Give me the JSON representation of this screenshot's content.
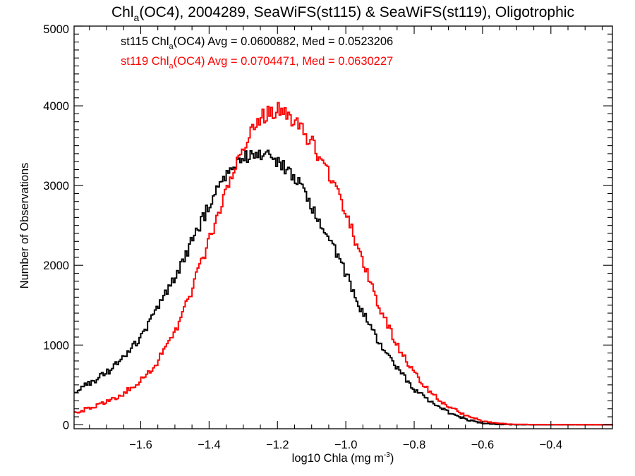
{
  "chart_data": {
    "type": "line",
    "style": "step-histogram",
    "title": {
      "prefix": "Chl",
      "subscript": "a",
      "suffix": "(OC4), 2004289, SeaWiFS(st115) & SeaWiFS(st119), Oligotrophic"
    },
    "xlabel": {
      "text": "log10 Chla (mg m",
      "superscript": "-3",
      "suffix": ")"
    },
    "ylabel": "Number of Observations",
    "xlim": [
      -1.795,
      -0.22
    ],
    "ylim": [
      -50,
      5000
    ],
    "x_ticks": [
      {
        "value": -1.6,
        "label": "−1.6"
      },
      {
        "value": -1.4,
        "label": "−1.4"
      },
      {
        "value": -1.2,
        "label": "−1.2"
      },
      {
        "value": -1.0,
        "label": "−1.0"
      },
      {
        "value": -0.8,
        "label": "−0.8"
      },
      {
        "value": -0.6,
        "label": "−0.6"
      },
      {
        "value": -0.4,
        "label": "−0.4"
      }
    ],
    "x_minor_step": 0.05,
    "y_ticks": [
      {
        "value": 0,
        "label": "0"
      },
      {
        "value": 1000,
        "label": "1000"
      },
      {
        "value": 2000,
        "label": "2000"
      },
      {
        "value": 3000,
        "label": "3000"
      },
      {
        "value": 4000,
        "label": "4000"
      },
      {
        "value": 5000,
        "label": "5000"
      }
    ],
    "y_minor_step": 100,
    "grid": false,
    "legend_position": "top-left",
    "annotations": [
      {
        "series": "st115",
        "prefix": "st115 Chl",
        "subscript": "a",
        "suffix": "(OC4) Avg = 0.0600882, Med = 0.0523206",
        "color": "#000000"
      },
      {
        "series": "st119",
        "prefix": "st119 Chl",
        "subscript": "a",
        "suffix": "(OC4) Avg = 0.0704471, Med = 0.0630227",
        "color": "#ff0000"
      }
    ],
    "bin_width": 0.005,
    "series": [
      {
        "name": "st115",
        "color": "#000000",
        "x": [
          -1.795,
          -1.75,
          -1.7,
          -1.65,
          -1.6,
          -1.55,
          -1.5,
          -1.45,
          -1.4,
          -1.35,
          -1.3,
          -1.25,
          -1.2,
          -1.15,
          -1.1,
          -1.05,
          -1.0,
          -0.95,
          -0.9,
          -0.85,
          -0.8,
          -0.75,
          -0.7,
          -0.65,
          -0.6,
          -0.55,
          -0.5,
          -0.45,
          -0.22
        ],
        "values": [
          420,
          520,
          650,
          850,
          1100,
          1450,
          1850,
          2300,
          2750,
          3150,
          3350,
          3400,
          3300,
          3100,
          2750,
          2350,
          1900,
          1400,
          1000,
          700,
          450,
          280,
          160,
          70,
          20,
          5,
          0,
          0,
          0
        ]
      },
      {
        "name": "st119",
        "color": "#ff0000",
        "x": [
          -1.795,
          -1.75,
          -1.7,
          -1.65,
          -1.6,
          -1.55,
          -1.5,
          -1.45,
          -1.4,
          -1.35,
          -1.3,
          -1.25,
          -1.2,
          -1.15,
          -1.1,
          -1.05,
          -1.0,
          -0.95,
          -0.9,
          -0.85,
          -0.8,
          -0.75,
          -0.7,
          -0.65,
          -0.6,
          -0.55,
          -0.5,
          -0.45,
          -0.22
        ],
        "values": [
          150,
          210,
          280,
          390,
          550,
          800,
          1150,
          1700,
          2300,
          2950,
          3500,
          3850,
          3950,
          3800,
          3550,
          3150,
          2650,
          2050,
          1450,
          1000,
          650,
          400,
          230,
          120,
          50,
          15,
          5,
          2,
          0
        ]
      }
    ]
  }
}
